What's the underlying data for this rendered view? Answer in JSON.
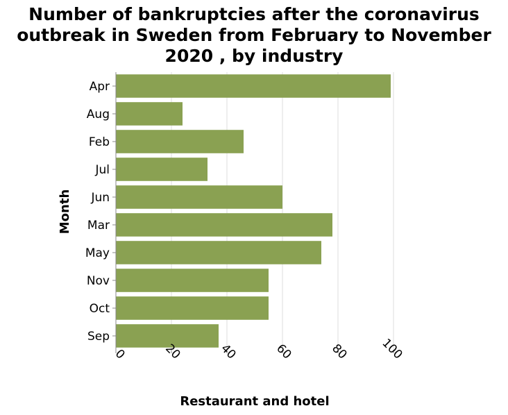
{
  "chart_data": {
    "type": "bar",
    "orientation": "horizontal",
    "title_lines": [
      "Number of bankruptcies after the coronavirus",
      "outbreak in Sweden from February to November",
      "2020 , by industry"
    ],
    "xlabel": "Restaurant and hotel",
    "ylabel": "Month",
    "categories": [
      "Apr",
      "Aug",
      "Feb",
      "Jul",
      "Jun",
      "Mar",
      "May",
      "Nov",
      "Oct",
      "Sep"
    ],
    "values": [
      99,
      24,
      46,
      33,
      60,
      78,
      74,
      55,
      55,
      37
    ],
    "xlim": [
      0,
      100
    ],
    "xticks": [
      "0",
      "20",
      "40",
      "60",
      "80",
      "100"
    ],
    "grid": true,
    "bar_color": "#8aa152",
    "grid_color": "#dddddd"
  }
}
